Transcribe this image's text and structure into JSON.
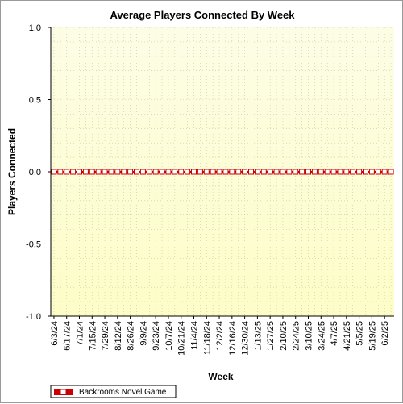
{
  "chart_data": {
    "type": "line",
    "title": "Average Players Connected By Week",
    "xlabel": "Week",
    "ylabel": "Players Connected",
    "ylim": [
      -1.0,
      1.0
    ],
    "yticks": [
      "1.0",
      "0.5",
      "0.0",
      "-0.5",
      "-1.0"
    ],
    "ytick_values": [
      1.0,
      0.5,
      0.0,
      -0.5,
      -1.0
    ],
    "x_tick_labels": [
      "6/3/24",
      "6/17/24",
      "7/1/24",
      "7/15/24",
      "7/29/24",
      "8/12/24",
      "8/26/24",
      "9/9/24",
      "9/23/24",
      "10/7/24",
      "10/21/24",
      "11/4/24",
      "11/18/24",
      "12/2/24",
      "12/16/24",
      "12/30/24",
      "1/13/25",
      "1/27/25",
      "2/10/25",
      "2/24/25",
      "3/10/25",
      "3/24/25",
      "4/7/25",
      "4/21/25",
      "5/5/25",
      "5/19/25",
      "6/2/25"
    ],
    "grid": true,
    "legend_position": "bottom-left",
    "colors": {
      "series": "#cc0000",
      "plot_bg_top": "#fdfde6",
      "plot_bg_bottom": "#fdfdc8",
      "grid": "#c8c8a0"
    },
    "series": [
      {
        "name": "Backrooms Novel Game",
        "x": [
          "6/3/24",
          "6/10/24",
          "6/17/24",
          "6/24/24",
          "7/1/24",
          "7/8/24",
          "7/15/24",
          "7/22/24",
          "7/29/24",
          "8/5/24",
          "8/12/24",
          "8/19/24",
          "8/26/24",
          "9/2/24",
          "9/9/24",
          "9/16/24",
          "9/23/24",
          "9/30/24",
          "10/7/24",
          "10/14/24",
          "10/21/24",
          "10/28/24",
          "11/4/24",
          "11/11/24",
          "11/18/24",
          "11/25/24",
          "12/2/24",
          "12/9/24",
          "12/16/24",
          "12/23/24",
          "12/30/24",
          "1/6/25",
          "1/13/25",
          "1/20/25",
          "1/27/25",
          "2/3/25",
          "2/10/25",
          "2/17/25",
          "2/24/25",
          "3/3/25",
          "3/10/25",
          "3/17/25",
          "3/24/25",
          "3/31/25",
          "4/7/25",
          "4/14/25",
          "4/21/25",
          "4/28/25",
          "5/5/25",
          "5/12/25",
          "5/19/25",
          "5/26/25",
          "6/2/25",
          "6/9/25"
        ],
        "values": [
          0,
          0,
          0,
          0,
          0,
          0,
          0,
          0,
          0,
          0,
          0,
          0,
          0,
          0,
          0,
          0,
          0,
          0,
          0,
          0,
          0,
          0,
          0,
          0,
          0,
          0,
          0,
          0,
          0,
          0,
          0,
          0,
          0,
          0,
          0,
          0,
          0,
          0,
          0,
          0,
          0,
          0,
          0,
          0,
          0,
          0,
          0,
          0,
          0,
          0,
          0,
          0,
          0,
          0
        ]
      }
    ]
  }
}
